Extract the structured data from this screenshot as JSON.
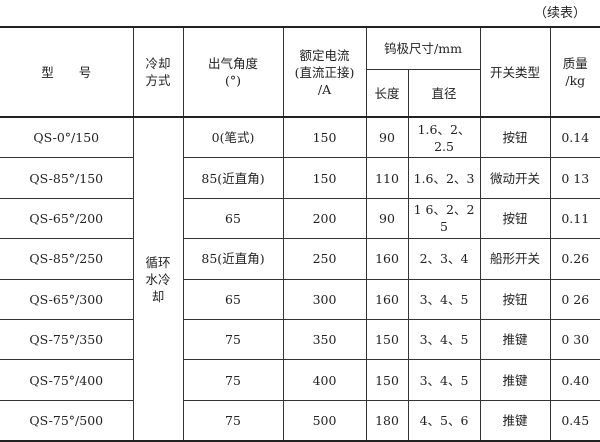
{
  "continued": "（续表）",
  "headers": {
    "model": "型　　号",
    "cooling": "冷却\n方式",
    "angle": "出气角度\n(°)",
    "current": "额定电流\n(直流正接)\n/A",
    "electrode": "钨极尺寸/mm",
    "length": "长度",
    "diameter": "直径",
    "switch": "开关类型",
    "mass": "质量\n/kg"
  },
  "cooling_value": "循环\n水冷\n却",
  "rows": [
    {
      "model": "QS-0°/150",
      "angle": "0(笔式)",
      "current": "150",
      "length": "90",
      "diameter": "1.6、2、2.5",
      "switch": "按钮",
      "mass": "0.14"
    },
    {
      "model": "QS-85°/150",
      "angle": "85(近直角)",
      "current": "150",
      "length": "110",
      "diameter": "1.6、2、3",
      "switch": "微动开关",
      "mass": "0 13"
    },
    {
      "model": "QS-65°/200",
      "angle": "65",
      "current": "200",
      "length": "90",
      "diameter": "1 6、2、2 5",
      "switch": "按钮",
      "mass": "0.11"
    },
    {
      "model": "QS-85°/250",
      "angle": "85(近直角)",
      "current": "250",
      "length": "160",
      "diameter": "2、3、4",
      "switch": "船形开关",
      "mass": "0.26"
    },
    {
      "model": "QS-65°/300",
      "angle": "65",
      "current": "300",
      "length": "160",
      "diameter": "3、4、5",
      "switch": "按钮",
      "mass": "0 26"
    },
    {
      "model": "QS-75°/350",
      "angle": "75",
      "current": "350",
      "length": "150",
      "diameter": "3、4、5",
      "switch": "推键",
      "mass": "0 30"
    },
    {
      "model": "QS-75°/400",
      "angle": "75",
      "current": "400",
      "length": "150",
      "diameter": "3、4、5",
      "switch": "推键",
      "mass": "0.40"
    },
    {
      "model": "QS-75°/500",
      "angle": "75",
      "current": "500",
      "length": "180",
      "diameter": "4、5、6",
      "switch": "推键",
      "mass": "0.45"
    }
  ]
}
